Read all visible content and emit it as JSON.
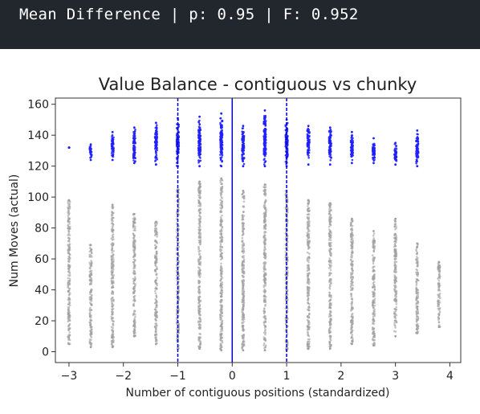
{
  "header": {
    "text": "Mean Difference | p: 0.95 | F: 0.952"
  },
  "chart_data": {
    "type": "scatter",
    "title": "Value Balance - contiguous vs chunky",
    "xlabel": "Number of contiguous positions (standardized)",
    "ylabel": "Num Moves (actual)",
    "xlim": [
      -3.25,
      4.2
    ],
    "ylim": [
      -7,
      164
    ],
    "xticks": [
      -3,
      -2,
      -1,
      0,
      1,
      2,
      3,
      4
    ],
    "yticks": [
      0,
      20,
      40,
      60,
      80,
      100,
      120,
      140,
      160
    ],
    "grid": false,
    "colors": {
      "high": "#1f1fff",
      "low": "#a0a0a0",
      "vline": "#0000cc"
    },
    "vlines": [
      {
        "x": -1,
        "style": "dashed"
      },
      {
        "x": 0,
        "style": "solid"
      },
      {
        "x": 1,
        "style": "dashed"
      }
    ],
    "series": [
      {
        "color": "blue",
        "columns": [
          {
            "x": -3.0,
            "y_min": 132,
            "y_max": 132
          },
          {
            "x": -2.6,
            "y_min": 124,
            "y_max": 134
          },
          {
            "x": -2.2,
            "y_min": 124,
            "y_max": 142
          },
          {
            "x": -1.8,
            "y_min": 122,
            "y_max": 145
          },
          {
            "x": -1.4,
            "y_min": 121,
            "y_max": 148
          },
          {
            "x": -1.0,
            "y_min": 120,
            "y_max": 151
          },
          {
            "x": -0.6,
            "y_min": 120,
            "y_max": 152
          },
          {
            "x": -0.2,
            "y_min": 120,
            "y_max": 154
          },
          {
            "x": 0.2,
            "y_min": 120,
            "y_max": 146
          },
          {
            "x": 0.6,
            "y_min": 120,
            "y_max": 156
          },
          {
            "x": 1.0,
            "y_min": 120,
            "y_max": 150
          },
          {
            "x": 1.4,
            "y_min": 121,
            "y_max": 146
          },
          {
            "x": 1.8,
            "y_min": 121,
            "y_max": 145
          },
          {
            "x": 2.2,
            "y_min": 122,
            "y_max": 142
          },
          {
            "x": 2.6,
            "y_min": 122,
            "y_max": 138
          },
          {
            "x": 3.0,
            "y_min": 121,
            "y_max": 135
          },
          {
            "x": 3.4,
            "y_min": 120,
            "y_max": 143
          }
        ]
      },
      {
        "color": "gray",
        "columns": [
          {
            "x": -3.0,
            "y_min": 5,
            "y_max": 98
          },
          {
            "x": -2.6,
            "y_min": 3,
            "y_max": 69
          },
          {
            "x": -2.2,
            "y_min": 3,
            "y_max": 95
          },
          {
            "x": -1.8,
            "y_min": 10,
            "y_max": 89
          },
          {
            "x": -1.4,
            "y_min": 5,
            "y_max": 84
          },
          {
            "x": -1.0,
            "y_min": 2,
            "y_max": 105
          },
          {
            "x": -0.6,
            "y_min": 2,
            "y_max": 110
          },
          {
            "x": -0.2,
            "y_min": 1,
            "y_max": 112
          },
          {
            "x": 0.2,
            "y_min": 1,
            "y_max": 104
          },
          {
            "x": 0.6,
            "y_min": 1,
            "y_max": 108
          },
          {
            "x": 1.0,
            "y_min": 1,
            "y_max": 104
          },
          {
            "x": 1.4,
            "y_min": 2,
            "y_max": 98
          },
          {
            "x": 1.8,
            "y_min": 2,
            "y_max": 96
          },
          {
            "x": 2.2,
            "y_min": 5,
            "y_max": 86
          },
          {
            "x": 2.6,
            "y_min": 4,
            "y_max": 78
          },
          {
            "x": 3.0,
            "y_min": 10,
            "y_max": 86
          },
          {
            "x": 3.4,
            "y_min": 12,
            "y_max": 70
          },
          {
            "x": 3.8,
            "y_min": 16,
            "y_max": 58
          }
        ]
      }
    ]
  }
}
